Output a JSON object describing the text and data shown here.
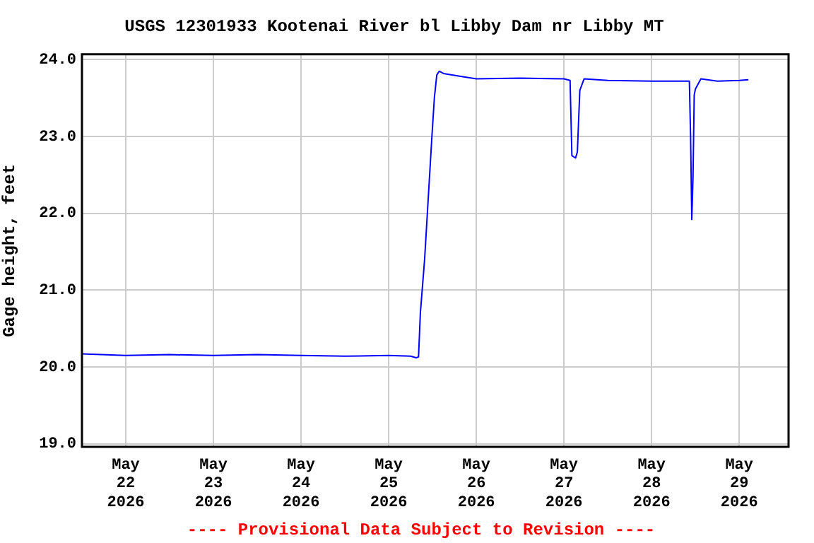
{
  "chart_data": {
    "type": "line",
    "title": "USGS 12301933 Kootenai River bl Libby Dam nr Libby MT",
    "ylabel": "Gage height, feet",
    "annotations": [
      "---- Provisional Data Subject to Revision ----"
    ],
    "x": [
      "2026-05-21T12:00",
      "2026-05-22T00:00",
      "2026-05-22T12:00",
      "2026-05-23T00:00",
      "2026-05-23T12:00",
      "2026-05-24T00:00",
      "2026-05-24T12:00",
      "2026-05-25T00:00",
      "2026-05-25T06:00",
      "2026-05-25T07:30",
      "2026-05-25T08:10",
      "2026-05-25T08:40",
      "2026-05-25T09:50",
      "2026-05-25T10:50",
      "2026-05-25T11:50",
      "2026-05-25T12:30",
      "2026-05-25T13:10",
      "2026-05-25T13:50",
      "2026-05-25T15:00",
      "2026-05-25T20:00",
      "2026-05-26T00:00",
      "2026-05-26T12:00",
      "2026-05-27T00:00",
      "2026-05-27T01:40",
      "2026-05-27T02:10",
      "2026-05-27T03:10",
      "2026-05-27T03:40",
      "2026-05-27T04:20",
      "2026-05-27T05:30",
      "2026-05-27T12:00",
      "2026-05-28T00:00",
      "2026-05-28T10:20",
      "2026-05-28T10:40",
      "2026-05-28T11:00",
      "2026-05-28T11:20",
      "2026-05-28T11:40",
      "2026-05-28T12:00",
      "2026-05-28T13:30",
      "2026-05-28T18:00",
      "2026-05-29T00:00",
      "2026-05-29T02:30"
    ],
    "series": [
      {
        "color": "#0000ff",
        "values": [
          20.17,
          20.15,
          20.16,
          20.15,
          20.16,
          20.15,
          20.14,
          20.15,
          20.14,
          20.12,
          20.13,
          20.7,
          21.4,
          22.2,
          23.0,
          23.5,
          23.8,
          23.85,
          23.82,
          23.78,
          23.75,
          23.76,
          23.75,
          23.73,
          22.75,
          22.72,
          22.8,
          23.6,
          23.75,
          23.73,
          23.72,
          23.72,
          23.0,
          21.92,
          22.47,
          23.54,
          23.62,
          23.75,
          23.72,
          23.73,
          23.74
        ]
      }
    ],
    "xlim": [
      "2026-05-21T12:00",
      "2026-05-29T13:30"
    ],
    "xticks": [
      {
        "value": "2026-05-22",
        "label": "May 22 2026"
      },
      {
        "value": "2026-05-23",
        "label": "May 23 2026"
      },
      {
        "value": "2026-05-24",
        "label": "May 24 2026"
      },
      {
        "value": "2026-05-25",
        "label": "May 25 2026"
      },
      {
        "value": "2026-05-26",
        "label": "May 26 2026"
      },
      {
        "value": "2026-05-27",
        "label": "May 27 2026"
      },
      {
        "value": "2026-05-28",
        "label": "May 28 2026"
      },
      {
        "value": "2026-05-29",
        "label": "May 29 2026"
      }
    ],
    "ylim": [
      18.96,
      24.07
    ],
    "yticks": [
      {
        "value": 19,
        "label": "19.0"
      },
      {
        "value": 20,
        "label": "20.0"
      },
      {
        "value": 21,
        "label": "21.0"
      },
      {
        "value": 22,
        "label": "22.0"
      },
      {
        "value": 23,
        "label": "23.0"
      },
      {
        "value": 24,
        "label": "24.0"
      }
    ],
    "grid": true,
    "legend": false,
    "marker": "none",
    "line_style": "solid"
  }
}
